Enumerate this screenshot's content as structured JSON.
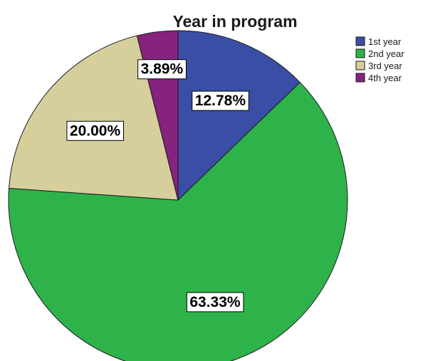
{
  "chart_data": {
    "type": "pie",
    "title": "Year in program",
    "legend_position": "top-right",
    "start_angle_deg": 0,
    "direction": "clockwise",
    "slices": [
      {
        "label": "1st year",
        "value": 12.78,
        "display": "12.78%",
        "color": "#3b4ea5"
      },
      {
        "label": "2nd year",
        "value": 63.33,
        "display": "63.33%",
        "color": "#2eb34a"
      },
      {
        "label": "3rd year",
        "value": 20.0,
        "display": "20.00%",
        "color": "#d6cf9c"
      },
      {
        "label": "4th year",
        "value": 3.89,
        "display": "3.89%",
        "color": "#86237d"
      }
    ]
  }
}
